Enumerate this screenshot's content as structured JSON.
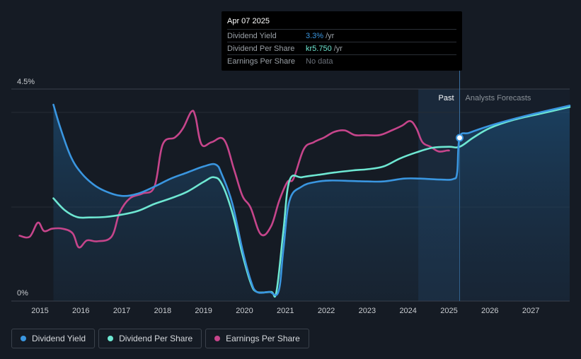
{
  "tooltip": {
    "date": "Apr 07 2025",
    "rows": [
      {
        "label": "Dividend Yield",
        "value": "3.3%",
        "unit": "/yr",
        "color": "#3a96e0"
      },
      {
        "label": "Dividend Per Share",
        "value": "kr5.750",
        "unit": "/yr",
        "color": "#6ee7d2"
      },
      {
        "label": "Earnings Per Share",
        "value": "No data",
        "unit": "",
        "color": "#6b717a"
      }
    ]
  },
  "chart_data": {
    "type": "line",
    "title": "",
    "xlabel": "",
    "ylabel": "",
    "x_ticks": [
      "2015",
      "2016",
      "2017",
      "2018",
      "2019",
      "2020",
      "2021",
      "2022",
      "2023",
      "2024",
      "2025",
      "2026",
      "2027"
    ],
    "y_ticks": [
      {
        "value": 0,
        "label": "0%"
      },
      {
        "value": 4.5,
        "label": "4.5%"
      }
    ],
    "xlim": [
      2014.3,
      2027.95
    ],
    "ylim": [
      -0.2,
      4.5
    ],
    "past_label": "Past",
    "forecast_label": "Analysts Forecasts",
    "past_band_start": 2024.25,
    "current_x": 2025.26,
    "series": [
      {
        "name": "Dividend Yield",
        "color": "#3a96e0",
        "fill": true,
        "points": [
          [
            2015.33,
            4.0
          ],
          [
            2015.5,
            3.5
          ],
          [
            2015.75,
            2.9
          ],
          [
            2016.0,
            2.55
          ],
          [
            2016.3,
            2.3
          ],
          [
            2016.6,
            2.15
          ],
          [
            2017.0,
            2.05
          ],
          [
            2017.4,
            2.1
          ],
          [
            2017.8,
            2.25
          ],
          [
            2018.2,
            2.42
          ],
          [
            2018.6,
            2.55
          ],
          [
            2019.0,
            2.68
          ],
          [
            2019.3,
            2.72
          ],
          [
            2019.45,
            2.5
          ],
          [
            2019.7,
            1.9
          ],
          [
            2019.95,
            0.9
          ],
          [
            2020.15,
            0.25
          ],
          [
            2020.3,
            0.0
          ],
          [
            2020.6,
            0.0
          ],
          [
            2020.83,
            0.0
          ],
          [
            2020.95,
            0.9
          ],
          [
            2021.1,
            1.95
          ],
          [
            2021.4,
            2.25
          ],
          [
            2021.75,
            2.35
          ],
          [
            2022.1,
            2.38
          ],
          [
            2022.6,
            2.37
          ],
          [
            2023.0,
            2.36
          ],
          [
            2023.4,
            2.36
          ],
          [
            2023.9,
            2.42
          ],
          [
            2024.3,
            2.42
          ],
          [
            2024.8,
            2.4
          ],
          [
            2025.1,
            2.41
          ],
          [
            2025.2,
            2.55
          ],
          [
            2025.26,
            3.3
          ],
          [
            2025.5,
            3.4
          ],
          [
            2026.0,
            3.55
          ],
          [
            2026.6,
            3.7
          ],
          [
            2027.3,
            3.85
          ],
          [
            2027.95,
            3.98
          ]
        ]
      },
      {
        "name": "Dividend Per Share",
        "color": "#6ee7d2",
        "fill": false,
        "points": [
          [
            2015.33,
            2.0
          ],
          [
            2015.6,
            1.75
          ],
          [
            2015.9,
            1.6
          ],
          [
            2016.2,
            1.59
          ],
          [
            2016.6,
            1.6
          ],
          [
            2017.0,
            1.65
          ],
          [
            2017.4,
            1.73
          ],
          [
            2017.8,
            1.88
          ],
          [
            2018.2,
            2.0
          ],
          [
            2018.6,
            2.14
          ],
          [
            2019.0,
            2.35
          ],
          [
            2019.25,
            2.45
          ],
          [
            2019.45,
            2.3
          ],
          [
            2019.7,
            1.7
          ],
          [
            2019.95,
            0.8
          ],
          [
            2020.15,
            0.2
          ],
          [
            2020.3,
            0.0
          ],
          [
            2020.65,
            0.0
          ],
          [
            2020.78,
            0.0
          ],
          [
            2020.95,
            1.3
          ],
          [
            2021.1,
            2.38
          ],
          [
            2021.4,
            2.45
          ],
          [
            2021.8,
            2.5
          ],
          [
            2022.2,
            2.55
          ],
          [
            2022.7,
            2.6
          ],
          [
            2023.0,
            2.62
          ],
          [
            2023.4,
            2.68
          ],
          [
            2023.8,
            2.85
          ],
          [
            2024.2,
            2.98
          ],
          [
            2024.6,
            3.08
          ],
          [
            2025.0,
            3.1
          ],
          [
            2025.26,
            3.1
          ],
          [
            2025.6,
            3.3
          ],
          [
            2026.0,
            3.5
          ],
          [
            2026.6,
            3.68
          ],
          [
            2027.3,
            3.82
          ],
          [
            2027.95,
            3.95
          ]
        ]
      },
      {
        "name": "Earnings Per Share",
        "color": "#c6458b",
        "fill": false,
        "points": [
          [
            2014.5,
            1.2
          ],
          [
            2014.75,
            1.18
          ],
          [
            2014.95,
            1.48
          ],
          [
            2015.1,
            1.3
          ],
          [
            2015.3,
            1.35
          ],
          [
            2015.55,
            1.35
          ],
          [
            2015.8,
            1.25
          ],
          [
            2015.95,
            0.95
          ],
          [
            2016.15,
            1.1
          ],
          [
            2016.4,
            1.08
          ],
          [
            2016.75,
            1.18
          ],
          [
            2016.95,
            1.7
          ],
          [
            2017.2,
            2.0
          ],
          [
            2017.5,
            2.1
          ],
          [
            2017.8,
            2.25
          ],
          [
            2018.0,
            3.15
          ],
          [
            2018.3,
            3.3
          ],
          [
            2018.5,
            3.5
          ],
          [
            2018.7,
            3.85
          ],
          [
            2018.8,
            3.75
          ],
          [
            2018.95,
            3.15
          ],
          [
            2019.2,
            3.2
          ],
          [
            2019.5,
            3.25
          ],
          [
            2019.75,
            2.6
          ],
          [
            2019.95,
            2.05
          ],
          [
            2020.15,
            1.8
          ],
          [
            2020.4,
            1.23
          ],
          [
            2020.65,
            1.4
          ],
          [
            2020.85,
            1.95
          ],
          [
            2021.05,
            2.35
          ],
          [
            2021.2,
            2.42
          ],
          [
            2021.45,
            3.05
          ],
          [
            2021.7,
            3.2
          ],
          [
            2021.95,
            3.3
          ],
          [
            2022.2,
            3.42
          ],
          [
            2022.45,
            3.45
          ],
          [
            2022.7,
            3.35
          ],
          [
            2022.95,
            3.35
          ],
          [
            2023.3,
            3.35
          ],
          [
            2023.6,
            3.45
          ],
          [
            2023.85,
            3.55
          ],
          [
            2024.05,
            3.65
          ],
          [
            2024.2,
            3.5
          ],
          [
            2024.35,
            3.2
          ],
          [
            2024.55,
            3.1
          ],
          [
            2024.75,
            3.0
          ],
          [
            2024.95,
            3.02
          ],
          [
            2025.0,
            3.02
          ]
        ]
      }
    ]
  },
  "legend": [
    {
      "label": "Dividend Yield",
      "color": "#3a96e0"
    },
    {
      "label": "Dividend Per Share",
      "color": "#6ee7d2"
    },
    {
      "label": "Earnings Per Share",
      "color": "#c6458b"
    }
  ]
}
